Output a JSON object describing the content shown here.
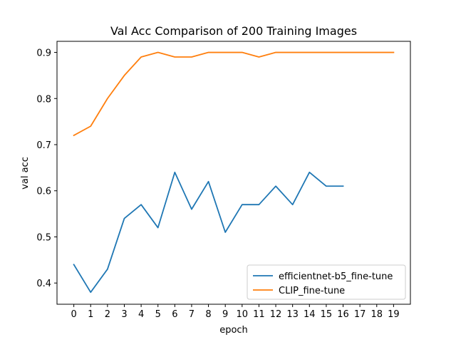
{
  "chart_data": {
    "type": "line",
    "title": "Val Acc Comparison of 200 Training Images",
    "xlabel": "epoch",
    "ylabel": "val acc",
    "xlim": [
      -1,
      20
    ],
    "ylim": [
      0.354,
      0.924
    ],
    "x_ticks": [
      0,
      1,
      2,
      3,
      4,
      5,
      6,
      7,
      8,
      9,
      10,
      11,
      12,
      13,
      14,
      15,
      16,
      17,
      18,
      19
    ],
    "y_ticks": [
      0.4,
      0.5,
      0.6,
      0.7,
      0.8,
      0.9
    ],
    "y_tick_labels": [
      "0.4",
      "0.5",
      "0.6",
      "0.7",
      "0.8",
      "0.9"
    ],
    "grid": false,
    "legend_position": "lower-right",
    "series": [
      {
        "name": "efficientnet-b5_fine-tune",
        "color": "#1f77b4",
        "x": [
          0,
          1,
          2,
          3,
          4,
          5,
          6,
          7,
          8,
          9,
          10,
          11,
          12,
          13,
          14,
          15,
          16
        ],
        "values": [
          0.44,
          0.38,
          0.43,
          0.54,
          0.57,
          0.52,
          0.64,
          0.56,
          0.62,
          0.51,
          0.57,
          0.57,
          0.61,
          0.57,
          0.64,
          0.61,
          0.61
        ]
      },
      {
        "name": "CLIP_fine-tune",
        "color": "#ff7f0e",
        "x": [
          0,
          1,
          2,
          3,
          4,
          5,
          6,
          7,
          8,
          9,
          10,
          11,
          12,
          13,
          14,
          15,
          16,
          17,
          18,
          19
        ],
        "values": [
          0.72,
          0.74,
          0.8,
          0.85,
          0.89,
          0.9,
          0.89,
          0.89,
          0.9,
          0.9,
          0.9,
          0.89,
          0.9,
          0.9,
          0.9,
          0.9,
          0.9,
          0.9,
          0.9,
          0.9
        ]
      }
    ]
  }
}
